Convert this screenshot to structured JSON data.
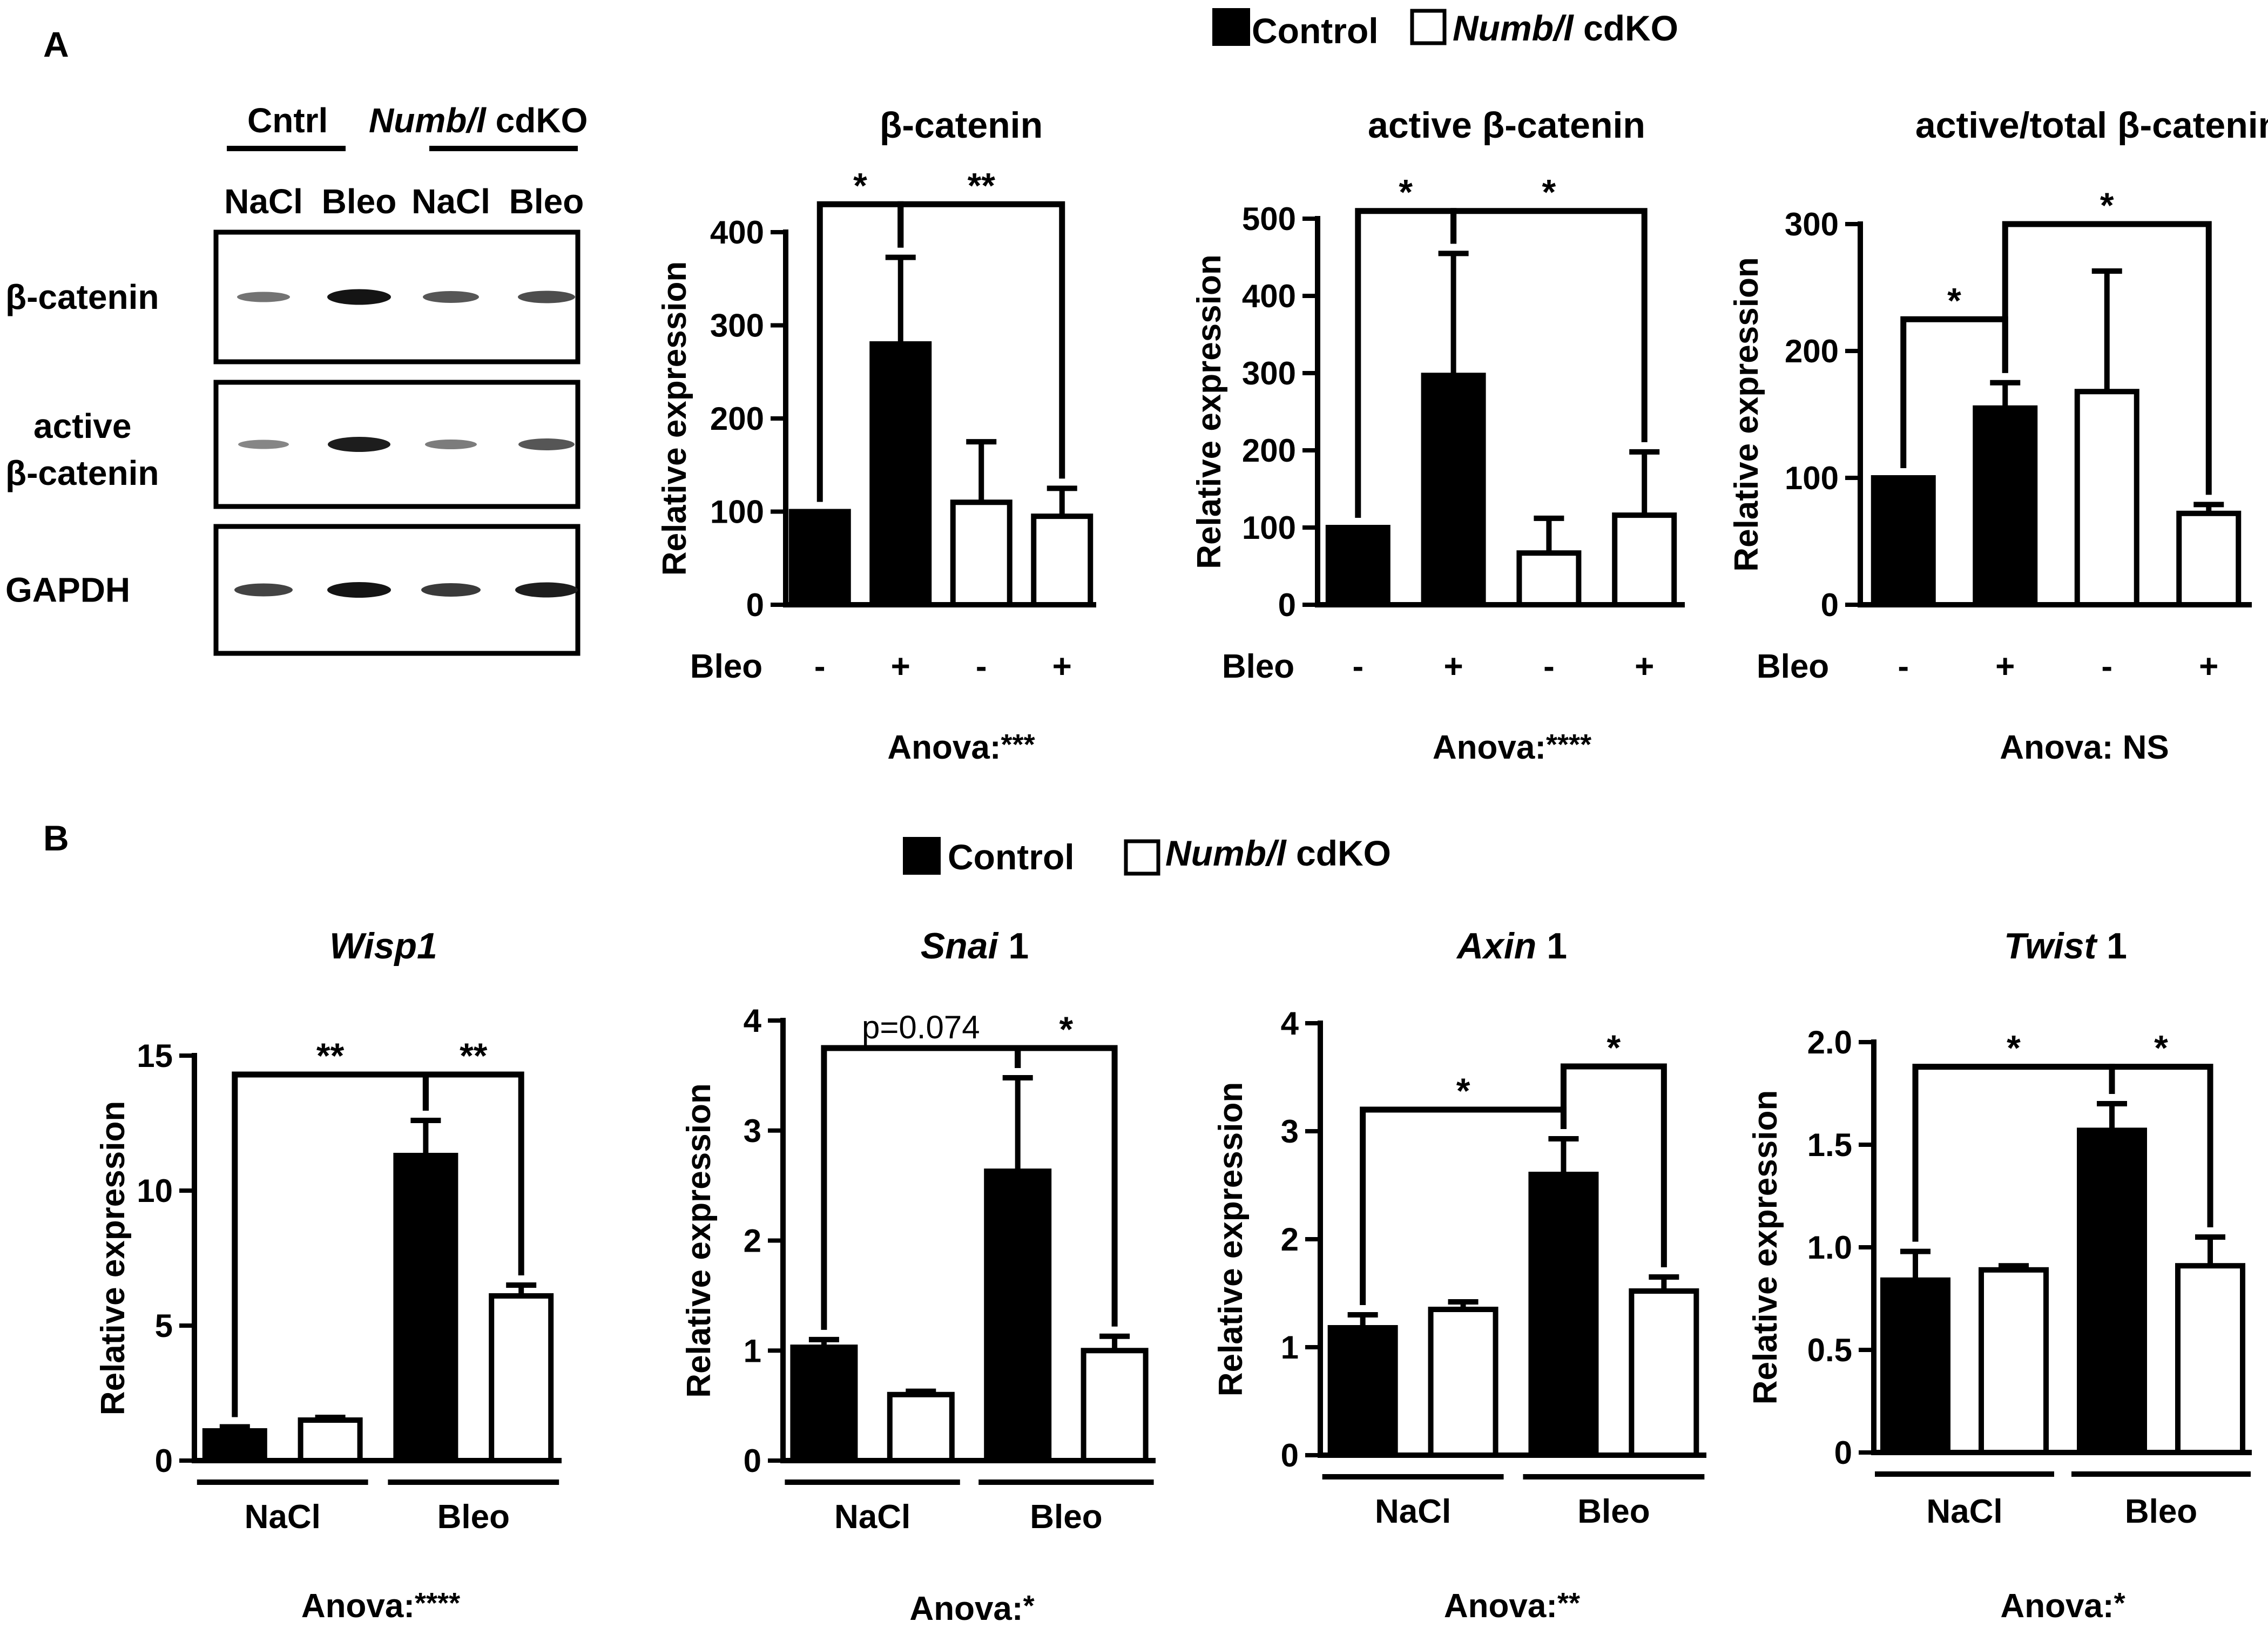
{
  "panel_a_label": "A",
  "panel_b_label": "B",
  "legend_a": {
    "control": "Control",
    "cdko_gene": "Numb/l",
    "cdko_suffix": " cdKO"
  },
  "legend_b": {
    "control": "Control",
    "cdko_gene": "Numb/l",
    "cdko_suffix": " cdKO"
  },
  "blot": {
    "group_cntrl": "Cntrl",
    "group_cdko_gene": "Numb/l",
    "group_cdko_suffix": " cdKO",
    "lanes": [
      "NaCl",
      "Bleo",
      "NaCl",
      "Bleo"
    ],
    "rows": [
      {
        "label": "β-catenin",
        "intensity": [
          0.45,
          0.95,
          0.6,
          0.65
        ]
      },
      {
        "label1": "active",
        "label2": "β-catenin",
        "intensity": [
          0.35,
          0.9,
          0.4,
          0.6
        ]
      },
      {
        "label": "GAPDH",
        "intensity": [
          0.7,
          0.95,
          0.75,
          0.9
        ]
      }
    ]
  },
  "colors": {
    "control": "#000000",
    "cdko": "#ffffff"
  },
  "chart_data": [
    {
      "type": "bar",
      "id": "beta-catenin",
      "title": "β-catenin",
      "ylabel": "Relative expression",
      "ylim": [
        0,
        400
      ],
      "yticks": [
        0,
        100,
        200,
        300,
        400
      ],
      "tick_labels": [
        "0",
        "100",
        "200",
        "300",
        "400"
      ],
      "xaxis_label": "Bleo",
      "bleo_signs": [
        "-",
        "+",
        "-",
        "+"
      ],
      "series": [
        {
          "name": "Control",
          "values": [
            100,
            280
          ]
        },
        {
          "name": "Numb/l cdKO",
          "values": [
            110,
            95
          ]
        }
      ],
      "bars": [
        {
          "v": 100,
          "e": 0,
          "g": "c"
        },
        {
          "v": 280,
          "e": 93,
          "g": "c"
        },
        {
          "v": 110,
          "e": 65,
          "g": "k"
        },
        {
          "v": 95,
          "e": 30,
          "g": "k"
        }
      ],
      "sig": [
        {
          "a": 0,
          "b": 1,
          "y": 430,
          "label": "*"
        },
        {
          "a": 1,
          "b": 3,
          "y": 430,
          "label": "**"
        }
      ],
      "anova": "Anova:",
      "anova_stars": "***"
    },
    {
      "type": "bar",
      "id": "active-beta-catenin",
      "title": "active β-catenin",
      "ylabel": "Relative expression",
      "ylim": [
        0,
        500
      ],
      "yticks": [
        0,
        100,
        200,
        300,
        400,
        500
      ],
      "tick_labels": [
        "0",
        "100",
        "200",
        "300",
        "400",
        "500"
      ],
      "xaxis_label": "Bleo",
      "bleo_signs": [
        "-",
        "+",
        "-",
        "+"
      ],
      "series": [
        {
          "name": "Control",
          "values": [
            100,
            297
          ]
        },
        {
          "name": "Numb/l cdKO",
          "values": [
            67,
            116
          ]
        }
      ],
      "bars": [
        {
          "v": 100,
          "e": 0,
          "g": "c"
        },
        {
          "v": 297,
          "e": 158,
          "g": "c"
        },
        {
          "v": 67,
          "e": 45,
          "g": "k"
        },
        {
          "v": 116,
          "e": 82,
          "g": "k"
        }
      ],
      "sig": [
        {
          "a": 0,
          "b": 1,
          "y": 510,
          "label": "*"
        },
        {
          "a": 1,
          "b": 3,
          "y": 510,
          "label": "*"
        }
      ],
      "anova": "Anova:",
      "anova_stars": "****"
    },
    {
      "type": "bar",
      "id": "active-total-beta-catenin",
      "title": "active/total β-catenin",
      "ylabel": "Relative expression",
      "ylim": [
        0,
        300
      ],
      "yticks": [
        0,
        100,
        200,
        300
      ],
      "tick_labels": [
        "0",
        "100",
        "200",
        "300"
      ],
      "xaxis_label": "Bleo",
      "bleo_signs": [
        "-",
        "+",
        "-",
        "+"
      ],
      "series": [
        {
          "name": "Control",
          "values": [
            100,
            155
          ]
        },
        {
          "name": "Numb/l cdKO",
          "values": [
            168,
            72
          ]
        }
      ],
      "bars": [
        {
          "v": 100,
          "e": 0,
          "g": "c"
        },
        {
          "v": 155,
          "e": 20,
          "g": "c"
        },
        {
          "v": 168,
          "e": 95,
          "g": "k"
        },
        {
          "v": 72,
          "e": 7,
          "g": "k"
        }
      ],
      "sig": [
        {
          "a": 0,
          "b": 1,
          "y": 225,
          "label": "*"
        },
        {
          "a": 1,
          "b": 3,
          "y": 300,
          "label": "*"
        }
      ],
      "anova": "Anova: ",
      "anova_stars": "NS"
    },
    {
      "type": "bar",
      "id": "wisp1",
      "title": "Wisp1",
      "title_suffix": "",
      "ylabel": "Relative expression",
      "ylim": [
        0,
        15
      ],
      "yticks": [
        0,
        5,
        10,
        15
      ],
      "tick_labels": [
        "0",
        "5",
        "10",
        "15"
      ],
      "groups": [
        "NaCl",
        "Bleo"
      ],
      "series": [
        {
          "name": "Control",
          "values": [
            1.1,
            11.3
          ]
        },
        {
          "name": "Numb/l cdKO",
          "values": [
            1.5,
            6.1
          ]
        }
      ],
      "bars": [
        {
          "v": 1.1,
          "e": 0.15,
          "g": "c"
        },
        {
          "v": 1.5,
          "e": 0.1,
          "g": "k"
        },
        {
          "v": 11.3,
          "e": 1.3,
          "g": "c"
        },
        {
          "v": 6.1,
          "e": 0.4,
          "g": "k"
        }
      ],
      "sig": [
        {
          "a": 0,
          "b": 2,
          "y": 14.3,
          "label": "**"
        },
        {
          "a": 2,
          "b": 3,
          "y": 14.3,
          "label": "**"
        }
      ],
      "anova": "Anova:",
      "anova_stars": "****"
    },
    {
      "type": "bar",
      "id": "snai1",
      "title": "Snai",
      "title_suffix": " 1",
      "ylabel": "Relative expression",
      "ylim": [
        0,
        4
      ],
      "yticks": [
        0,
        1,
        2,
        3,
        4
      ],
      "tick_labels": [
        "0",
        "1",
        "2",
        "3",
        "4"
      ],
      "groups": [
        "NaCl",
        "Bleo"
      ],
      "series": [
        {
          "name": "Control",
          "values": [
            1.03,
            2.63
          ]
        },
        {
          "name": "Numb/l cdKO",
          "values": [
            0.6,
            1.0
          ]
        }
      ],
      "bars": [
        {
          "v": 1.03,
          "e": 0.07,
          "g": "c"
        },
        {
          "v": 0.6,
          "e": 0.03,
          "g": "k"
        },
        {
          "v": 2.63,
          "e": 0.85,
          "g": "c"
        },
        {
          "v": 1.0,
          "e": 0.13,
          "g": "k"
        }
      ],
      "sig": [
        {
          "a": 0,
          "b": 2,
          "y": 3.75,
          "label": "p=0.074"
        },
        {
          "a": 2,
          "b": 3,
          "y": 3.75,
          "label": "*"
        }
      ],
      "anova": "Anova:",
      "anova_stars": "*"
    },
    {
      "type": "bar",
      "id": "axin1",
      "title": "Axin",
      "title_suffix": " 1",
      "ylabel": "Relative expression",
      "ylim": [
        0,
        4
      ],
      "yticks": [
        0,
        1,
        2,
        3,
        4
      ],
      "tick_labels": [
        "0",
        "1",
        "2",
        "3",
        "4"
      ],
      "groups": [
        "NaCl",
        "Bleo"
      ],
      "series": [
        {
          "name": "Control",
          "values": [
            1.18,
            2.6
          ]
        },
        {
          "name": "Numb/l cdKO",
          "values": [
            1.35,
            1.52
          ]
        }
      ],
      "bars": [
        {
          "v": 1.18,
          "e": 0.12,
          "g": "c"
        },
        {
          "v": 1.35,
          "e": 0.07,
          "g": "k"
        },
        {
          "v": 2.6,
          "e": 0.33,
          "g": "c"
        },
        {
          "v": 1.52,
          "e": 0.13,
          "g": "k"
        }
      ],
      "sig": [
        {
          "a": 0,
          "b": 2,
          "y": 3.2,
          "label": "*"
        },
        {
          "a": 2,
          "b": 3,
          "y": 3.6,
          "label": "*"
        }
      ],
      "anova": "Anova:",
      "anova_stars": "**"
    },
    {
      "type": "bar",
      "id": "twist1",
      "title": "Twist",
      "title_suffix": " 1",
      "ylabel": "Relative expression",
      "ylim": [
        0,
        2.0
      ],
      "yticks": [
        0,
        0.5,
        1.0,
        1.5,
        2.0
      ],
      "tick_labels": [
        "0",
        "0.5",
        "1.0",
        "1.5",
        "2.0"
      ],
      "groups": [
        "NaCl",
        "Bleo"
      ],
      "series": [
        {
          "name": "Control",
          "values": [
            0.84,
            1.57
          ]
        },
        {
          "name": "Numb/l cdKO",
          "values": [
            0.89,
            0.91
          ]
        }
      ],
      "bars": [
        {
          "v": 0.84,
          "e": 0.14,
          "g": "c"
        },
        {
          "v": 0.89,
          "e": 0.02,
          "g": "k"
        },
        {
          "v": 1.57,
          "e": 0.13,
          "g": "c"
        },
        {
          "v": 0.91,
          "e": 0.14,
          "g": "k"
        }
      ],
      "sig": [
        {
          "a": 0,
          "b": 2,
          "y": 1.88,
          "label": "*"
        },
        {
          "a": 2,
          "b": 3,
          "y": 1.88,
          "label": "*"
        }
      ],
      "anova": "Anova:",
      "anova_stars": "*"
    }
  ]
}
